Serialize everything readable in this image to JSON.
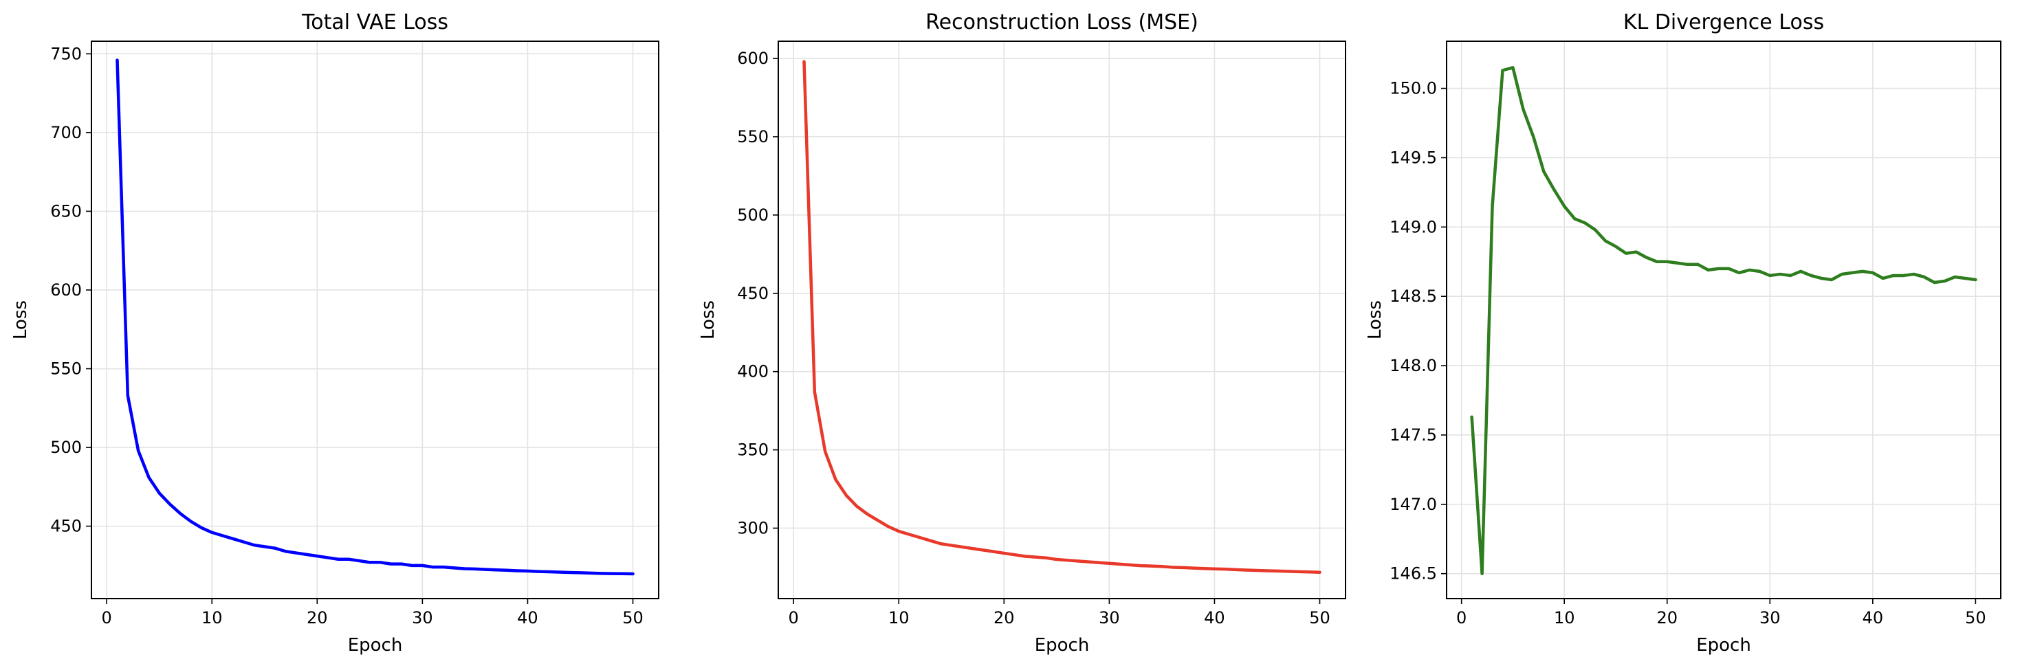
{
  "chart_data": [
    {
      "type": "line",
      "title": "Total VAE Loss",
      "xlabel": "Epoch",
      "ylabel": "Loss",
      "xlim": [
        -1.45,
        52.45
      ],
      "ylim": [
        404,
        758
      ],
      "xticks": [
        0,
        10,
        20,
        30,
        40,
        50
      ],
      "yticks": [
        450,
        500,
        550,
        600,
        650,
        700,
        750
      ],
      "grid": true,
      "color": "#0000ff",
      "series": [
        {
          "x": [
            1,
            2,
            3,
            4,
            5,
            6,
            7,
            8,
            9,
            10,
            11,
            12,
            13,
            14,
            15,
            16,
            17,
            18,
            19,
            20,
            21,
            22,
            23,
            24,
            25,
            26,
            27,
            28,
            29,
            30,
            31,
            32,
            33,
            34,
            35,
            36,
            37,
            38,
            39,
            40,
            41,
            42,
            43,
            44,
            45,
            46,
            47,
            48,
            49,
            50
          ],
          "values": [
            746,
            533,
            498,
            481,
            471,
            464,
            458,
            453,
            449,
            446,
            444,
            442,
            440,
            438,
            437,
            436,
            434,
            433,
            432,
            431,
            430,
            429,
            429,
            428,
            427,
            427,
            426,
            426,
            425,
            425,
            424,
            424,
            423.5,
            423,
            422.8,
            422.5,
            422.2,
            422,
            421.7,
            421.5,
            421.2,
            421,
            420.8,
            420.6,
            420.4,
            420.2,
            420,
            419.9,
            419.8,
            419.7
          ]
        }
      ]
    },
    {
      "type": "line",
      "title": "Reconstruction Loss (MSE)",
      "xlabel": "Epoch",
      "ylabel": "Loss",
      "xlim": [
        -1.45,
        52.45
      ],
      "ylim": [
        255,
        611
      ],
      "xticks": [
        0,
        10,
        20,
        30,
        40,
        50
      ],
      "yticks": [
        300,
        350,
        400,
        450,
        500,
        550,
        600
      ],
      "grid": true,
      "color": "#e8392b",
      "series": [
        {
          "x": [
            1,
            2,
            3,
            4,
            5,
            6,
            7,
            8,
            9,
            10,
            11,
            12,
            13,
            14,
            15,
            16,
            17,
            18,
            19,
            20,
            21,
            22,
            23,
            24,
            25,
            26,
            27,
            28,
            29,
            30,
            31,
            32,
            33,
            34,
            35,
            36,
            37,
            38,
            39,
            40,
            41,
            42,
            43,
            44,
            45,
            46,
            47,
            48,
            49,
            50
          ],
          "values": [
            598,
            387,
            349,
            331,
            321,
            314,
            309,
            305,
            301,
            298,
            296,
            294,
            292,
            290,
            289,
            288,
            287,
            286,
            285,
            284,
            283,
            282,
            281.5,
            281,
            280,
            279.5,
            279,
            278.5,
            278,
            277.5,
            277,
            276.5,
            276,
            275.8,
            275.5,
            275,
            274.8,
            274.5,
            274.2,
            274,
            273.8,
            273.5,
            273.2,
            273,
            272.8,
            272.6,
            272.4,
            272.2,
            272,
            271.8
          ]
        }
      ]
    },
    {
      "type": "line",
      "title": "KL Divergence Loss",
      "xlabel": "Epoch",
      "ylabel": "Loss",
      "xlim": [
        -1.45,
        52.45
      ],
      "ylim": [
        146.32,
        150.34
      ],
      "xticks": [
        0,
        10,
        20,
        30,
        40,
        50
      ],
      "yticks": [
        146.5,
        147.0,
        147.5,
        148.0,
        148.5,
        149.0,
        149.5,
        150.0
      ],
      "grid": true,
      "color": "#2e7d1e",
      "series": [
        {
          "x": [
            1,
            2,
            3,
            4,
            5,
            6,
            7,
            8,
            9,
            10,
            11,
            12,
            13,
            14,
            15,
            16,
            17,
            18,
            19,
            20,
            21,
            22,
            23,
            24,
            25,
            26,
            27,
            28,
            29,
            30,
            31,
            32,
            33,
            34,
            35,
            36,
            37,
            38,
            39,
            40,
            41,
            42,
            43,
            44,
            45,
            46,
            47,
            48,
            49,
            50
          ],
          "values": [
            147.63,
            146.5,
            149.15,
            150.13,
            150.15,
            149.85,
            149.65,
            149.4,
            149.27,
            149.15,
            149.06,
            149.03,
            148.98,
            148.9,
            148.86,
            148.81,
            148.82,
            148.78,
            148.75,
            148.75,
            148.74,
            148.73,
            148.73,
            148.69,
            148.7,
            148.7,
            148.67,
            148.69,
            148.68,
            148.65,
            148.66,
            148.65,
            148.68,
            148.65,
            148.63,
            148.62,
            148.66,
            148.67,
            148.68,
            148.67,
            148.63,
            148.65,
            148.65,
            148.66,
            148.64,
            148.6,
            148.61,
            148.64,
            148.63,
            148.62
          ]
        }
      ]
    }
  ]
}
